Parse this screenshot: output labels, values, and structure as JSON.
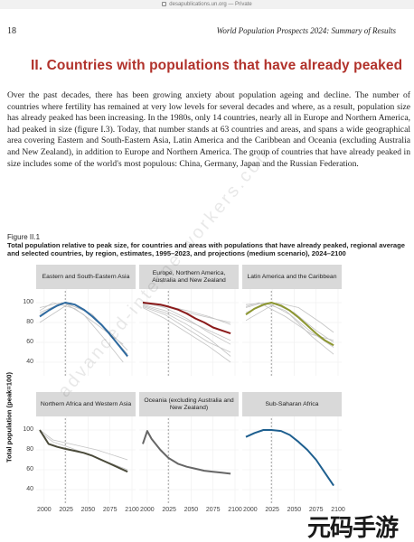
{
  "browser": {
    "url": "desapublications.un.org",
    "mode": "Private",
    "separator": " — "
  },
  "page": {
    "number": "18",
    "running_head": "World Population Prospects 2024: Summary of Results",
    "section_title": "II. Countries with populations that have already peaked",
    "body": "Over the past decades, there has been growing anxiety about population ageing and decline. The number of countries where fertility has remained at very low levels for several decades and where, as a result, population size has already peaked has been increasing. In the 1980s, only 14 countries, nearly all in Europe and Northern America, had peaked in size (figure I.3). Today, that number stands at 63 countries and areas, and spans a wide geographical area covering Eastern and South-Eastern Asia, Latin America and the Caribbean and Oceania (excluding Australia and New Zealand), in addition to Europe and Northern America. The group of countries that have already peaked in size includes some of the world's most populous: China, Germany, Japan and the Russian Federation.",
    "figure_label": "Figure II.1",
    "figure_caption": "Total population relative to peak size, for countries and areas with populations that have already peaked, regional average and selected countries, by region, estimates, 1995–2023, and projections (medium scenario), 2024–2100"
  },
  "watermark": "advanced-internetworkers.com",
  "logo_text": "元码手游网",
  "chart_data": {
    "type": "line",
    "ylabel": "Total population (peak=100)",
    "xlim": [
      1995,
      2100
    ],
    "x_ticks": [
      "2000",
      "2025",
      "2050",
      "2075",
      "2100"
    ],
    "reference_year": 2024,
    "panels": [
      {
        "title": "Eastern and South-Eastern Asia",
        "color": "#2e6aa0",
        "ylim": [
          30,
          110
        ],
        "y_ticks": [
          "100",
          "80",
          "60",
          "40"
        ],
        "regional_average": {
          "x": [
            1995,
            2005,
            2015,
            2024,
            2035,
            2045,
            2055,
            2065,
            2075,
            2085,
            2095
          ],
          "y": [
            86,
            92,
            97,
            100,
            98,
            93,
            86,
            78,
            68,
            57,
            46
          ]
        },
        "countries": [
          {
            "x": [
              1995,
              2024,
              2050,
              2075,
              2095
            ],
            "y": [
              88,
              100,
              90,
              70,
              52
            ]
          },
          {
            "x": [
              1995,
              2020,
              2045,
              2070,
              2095
            ],
            "y": [
              95,
              100,
              93,
              73,
              45
            ]
          },
          {
            "x": [
              1995,
              2010,
              2035,
              2060,
              2090
            ],
            "y": [
              92,
              100,
              94,
              78,
              58
            ]
          },
          {
            "x": [
              1995,
              2030,
              2055,
              2080,
              2095
            ],
            "y": [
              80,
              100,
              88,
              63,
              48
            ]
          },
          {
            "x": [
              1995,
              2022,
              2045,
              2070,
              2090
            ],
            "y": [
              90,
              100,
              88,
              62,
              40
            ]
          }
        ]
      },
      {
        "title": "Europe, Northern America, Australia and New Zealand",
        "color": "#8b1a1a",
        "ylim": [
          30,
          110
        ],
        "y_ticks": [
          "100",
          "80",
          "60",
          "40"
        ],
        "regional_average": {
          "x": [
            1995,
            2005,
            2015,
            2024,
            2035,
            2045,
            2055,
            2065,
            2075,
            2085,
            2095
          ],
          "y": [
            100,
            99,
            98,
            96,
            93,
            89,
            84,
            80,
            75,
            72,
            69
          ]
        },
        "countries": [
          {
            "x": [
              1995,
              2020,
              2045,
              2070,
              2095
            ],
            "y": [
              99,
              96,
              90,
              85,
              80
            ]
          },
          {
            "x": [
              1995,
              2020,
              2045,
              2070,
              2095
            ],
            "y": [
              98,
              92,
              82,
              72,
              62
            ]
          },
          {
            "x": [
              1995,
              2020,
              2045,
              2070,
              2095
            ],
            "y": [
              96,
              88,
              74,
              60,
              50
            ]
          },
          {
            "x": [
              1995,
              2020,
              2045,
              2070,
              2095
            ],
            "y": [
              100,
              95,
              84,
              70,
              58
            ]
          },
          {
            "x": [
              1995,
              2020,
              2045,
              2070,
              2095
            ],
            "y": [
              97,
              90,
              78,
              64,
              46
            ]
          },
          {
            "x": [
              1995,
              2020,
              2045,
              2070,
              2095
            ],
            "y": [
              100,
              97,
              92,
              86,
              78
            ]
          },
          {
            "x": [
              1995,
              2020,
              2045,
              2070,
              2095
            ],
            "y": [
              95,
              84,
              70,
              56,
              40
            ]
          }
        ]
      },
      {
        "title": "Latin America and the Caribbean",
        "color": "#8c9630",
        "ylim": [
          30,
          110
        ],
        "y_ticks": [
          "100",
          "80",
          "60",
          "40"
        ],
        "regional_average": {
          "x": [
            1995,
            2005,
            2015,
            2024,
            2035,
            2045,
            2055,
            2065,
            2075,
            2085,
            2095
          ],
          "y": [
            88,
            94,
            98,
            100,
            97,
            92,
            85,
            77,
            69,
            62,
            57
          ]
        },
        "countries": [
          {
            "x": [
              1995,
              2024,
              2050,
              2075,
              2095
            ],
            "y": [
              90,
              100,
              90,
              72,
              60
            ]
          },
          {
            "x": [
              1995,
              2015,
              2040,
              2070,
              2095
            ],
            "y": [
              95,
              100,
              92,
              70,
              55
            ]
          },
          {
            "x": [
              1995,
              2030,
              2055,
              2080,
              2095
            ],
            "y": [
              82,
              100,
              95,
              80,
              70
            ]
          },
          {
            "x": [
              1995,
              2020,
              2045,
              2070,
              2095
            ],
            "y": [
              98,
              100,
              88,
              66,
              48
            ]
          },
          {
            "x": [
              1995,
              2010,
              2040,
              2070,
              2095
            ],
            "y": [
              96,
              100,
              86,
              68,
              62
            ]
          }
        ]
      },
      {
        "title": "Northern Africa and Western Asia",
        "color": "#4a4a3a",
        "ylim": [
          30,
          110
        ],
        "y_ticks": [
          "100",
          "80",
          "60",
          "40"
        ],
        "regional_average": {
          "x": [
            1995,
            2005,
            2015,
            2024,
            2035,
            2045,
            2055,
            2065,
            2075,
            2085,
            2095
          ],
          "y": [
            100,
            86,
            83,
            81,
            79,
            77,
            74,
            70,
            66,
            62,
            58
          ]
        },
        "countries": [
          {
            "x": [
              1995,
              2010,
              2030,
              2060,
              2095
            ],
            "y": [
              100,
              90,
              86,
              80,
              70
            ]
          },
          {
            "x": [
              1995,
              2010,
              2030,
              2060,
              2095
            ],
            "y": [
              98,
              88,
              82,
              72,
              60
            ]
          }
        ]
      },
      {
        "title": "Oceania (excluding Australia and New Zealand)",
        "color": "#666666",
        "ylim": [
          30,
          110
        ],
        "y_ticks": [
          "100",
          "80",
          "60",
          "40"
        ],
        "regional_average": {
          "x": [
            1995,
            2000,
            2005,
            2015,
            2024,
            2035,
            2045,
            2055,
            2065,
            2075,
            2085,
            2095
          ],
          "y": [
            86,
            99,
            91,
            80,
            72,
            66,
            63,
            61,
            59,
            58,
            57,
            56
          ]
        },
        "countries": []
      },
      {
        "title": "Sub-Saharan Africa",
        "color": "#1e5f8f",
        "ylim": [
          30,
          110
        ],
        "y_ticks": [
          "100",
          "80",
          "60",
          "40"
        ],
        "regional_average": {
          "x": [
            1995,
            2005,
            2015,
            2024,
            2035,
            2045,
            2055,
            2065,
            2075,
            2085,
            2095
          ],
          "y": [
            93,
            97,
            100,
            100,
            99,
            95,
            88,
            80,
            70,
            57,
            44
          ]
        },
        "countries": []
      }
    ]
  }
}
